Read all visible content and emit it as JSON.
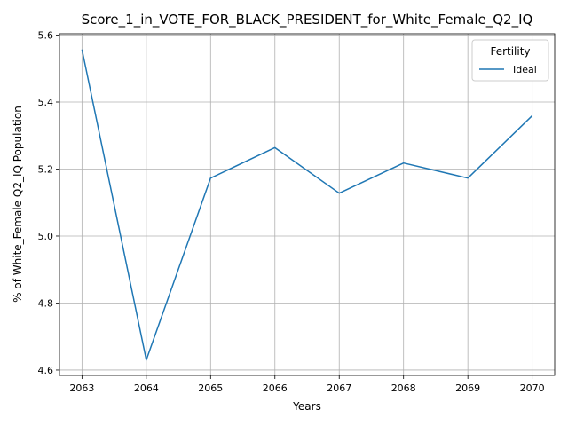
{
  "chart_data": {
    "type": "line",
    "title": "Score_1_in_VOTE_FOR_BLACK_PRESIDENT_for_White_Female_Q2_IQ",
    "xlabel": "Years",
    "ylabel": "% of White_Female Q2_IQ Population",
    "x": [
      2063,
      2064,
      2065,
      2066,
      2067,
      2068,
      2069,
      2070
    ],
    "xticks": [
      "2063",
      "2064",
      "2065",
      "2066",
      "2067",
      "2068",
      "2069",
      "2070"
    ],
    "yticks": [
      "4.6",
      "4.8",
      "5.0",
      "5.2",
      "5.4",
      "5.6"
    ],
    "ylim": [
      4.584,
      5.604
    ],
    "grid": true,
    "legend": {
      "title": "Fertility",
      "placement": "top-right"
    },
    "series": [
      {
        "name": "Ideal",
        "color": "#1f77b4",
        "values": [
          5.557,
          4.63,
          5.173,
          5.264,
          5.128,
          5.218,
          5.173,
          5.359
        ]
      }
    ]
  }
}
